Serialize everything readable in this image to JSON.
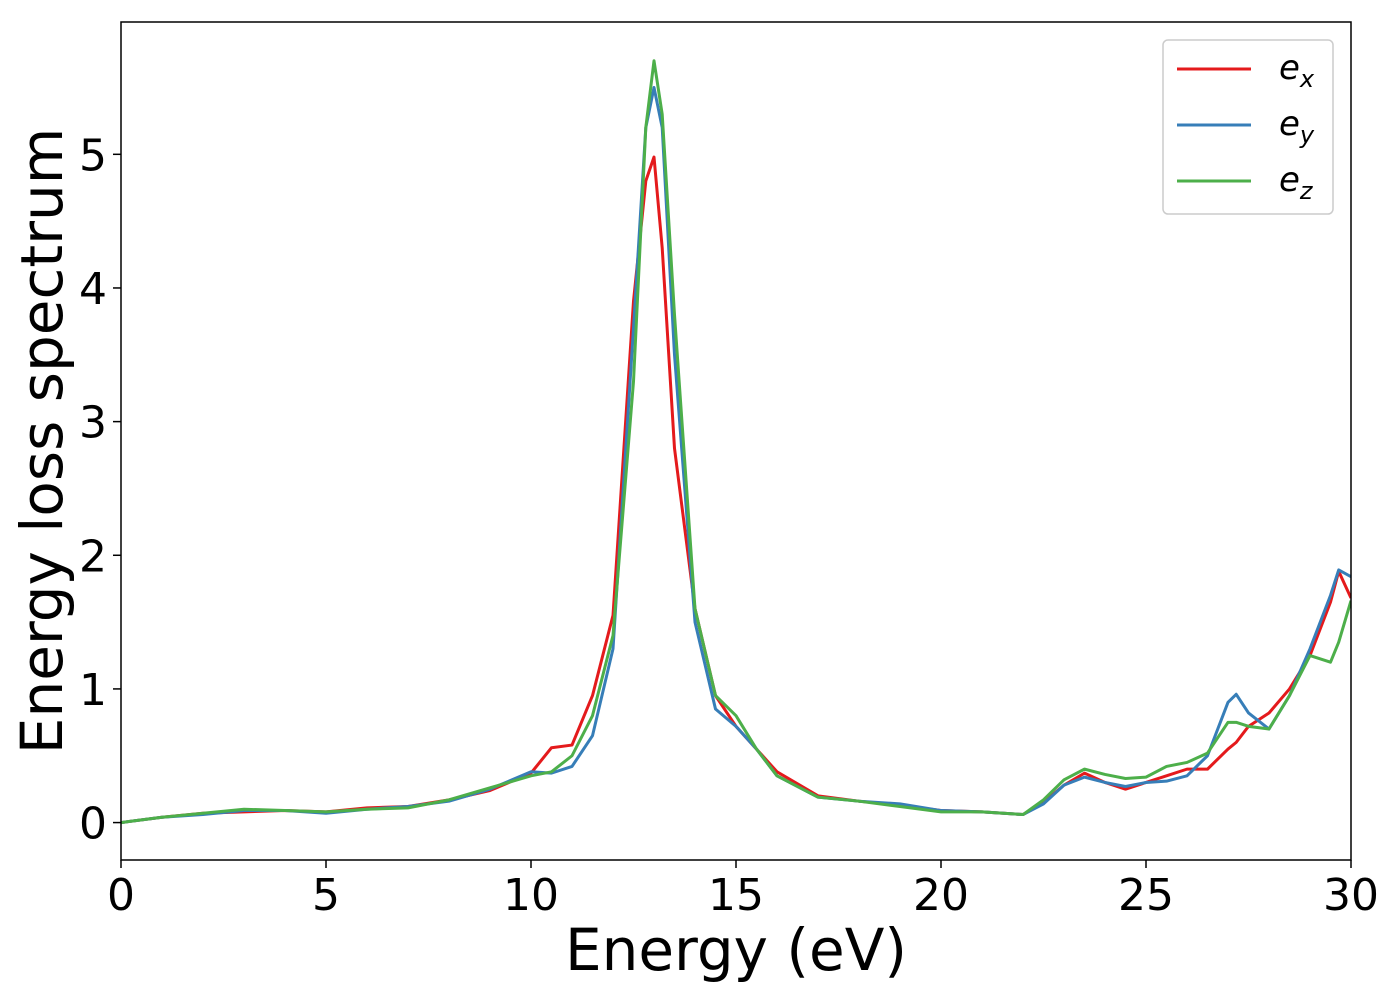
{
  "chart_data": {
    "type": "line",
    "xlabel": "Energy (eV)",
    "ylabel": "Energy loss spectrum",
    "x": [
      0,
      1,
      2,
      3,
      4,
      5,
      6,
      7,
      8,
      9,
      10,
      10.5,
      11,
      11.5,
      12,
      12.5,
      12.8,
      13,
      13.2,
      13.5,
      14,
      14.5,
      15,
      15.5,
      16,
      17,
      18,
      19,
      20,
      21,
      22,
      22.5,
      23,
      23.5,
      24,
      24.5,
      25,
      25.5,
      26,
      26.5,
      27,
      27.2,
      27.5,
      28,
      28.5,
      29,
      29.5,
      29.7,
      30
    ],
    "series": [
      {
        "name": "ex",
        "color": "#e41a1c",
        "values": [
          0,
          0.04,
          0.07,
          0.08,
          0.09,
          0.08,
          0.11,
          0.12,
          0.17,
          0.24,
          0.37,
          0.56,
          0.58,
          0.95,
          1.55,
          3.9,
          4.8,
          4.98,
          4.3,
          2.8,
          1.6,
          0.95,
          0.72,
          0.55,
          0.38,
          0.2,
          0.16,
          0.13,
          0.09,
          0.08,
          0.06,
          0.15,
          0.28,
          0.37,
          0.3,
          0.25,
          0.3,
          0.35,
          0.4,
          0.4,
          0.55,
          0.6,
          0.72,
          0.82,
          1.0,
          1.25,
          1.65,
          1.88,
          1.68
        ]
      },
      {
        "name": "ey",
        "color": "#377eb8",
        "values": [
          0,
          0.04,
          0.06,
          0.09,
          0.09,
          0.07,
          0.1,
          0.12,
          0.16,
          0.25,
          0.38,
          0.37,
          0.42,
          0.65,
          1.3,
          3.7,
          5.2,
          5.5,
          5.2,
          3.5,
          1.5,
          0.85,
          0.72,
          0.55,
          0.35,
          0.19,
          0.16,
          0.14,
          0.09,
          0.08,
          0.06,
          0.14,
          0.28,
          0.34,
          0.3,
          0.27,
          0.3,
          0.31,
          0.35,
          0.5,
          0.9,
          0.96,
          0.82,
          0.7,
          0.95,
          1.3,
          1.7,
          1.89,
          1.84
        ]
      },
      {
        "name": "ez",
        "color": "#4daf4a",
        "values": [
          0,
          0.04,
          0.07,
          0.1,
          0.09,
          0.08,
          0.1,
          0.11,
          0.17,
          0.26,
          0.35,
          0.38,
          0.5,
          0.8,
          1.4,
          3.3,
          5.2,
          5.7,
          5.3,
          3.8,
          1.6,
          0.95,
          0.8,
          0.55,
          0.35,
          0.19,
          0.16,
          0.12,
          0.08,
          0.08,
          0.06,
          0.17,
          0.32,
          0.4,
          0.36,
          0.33,
          0.34,
          0.42,
          0.45,
          0.52,
          0.75,
          0.75,
          0.72,
          0.7,
          0.95,
          1.25,
          1.2,
          1.35,
          1.66
        ]
      }
    ],
    "xlim": [
      0,
      30
    ],
    "xticks": [
      0,
      5,
      10,
      15,
      20,
      25,
      30
    ],
    "ylim": [
      -0.28,
      5.99
    ],
    "yticks": [
      0,
      1,
      2,
      3,
      4,
      5
    ],
    "legend": "upper right"
  }
}
